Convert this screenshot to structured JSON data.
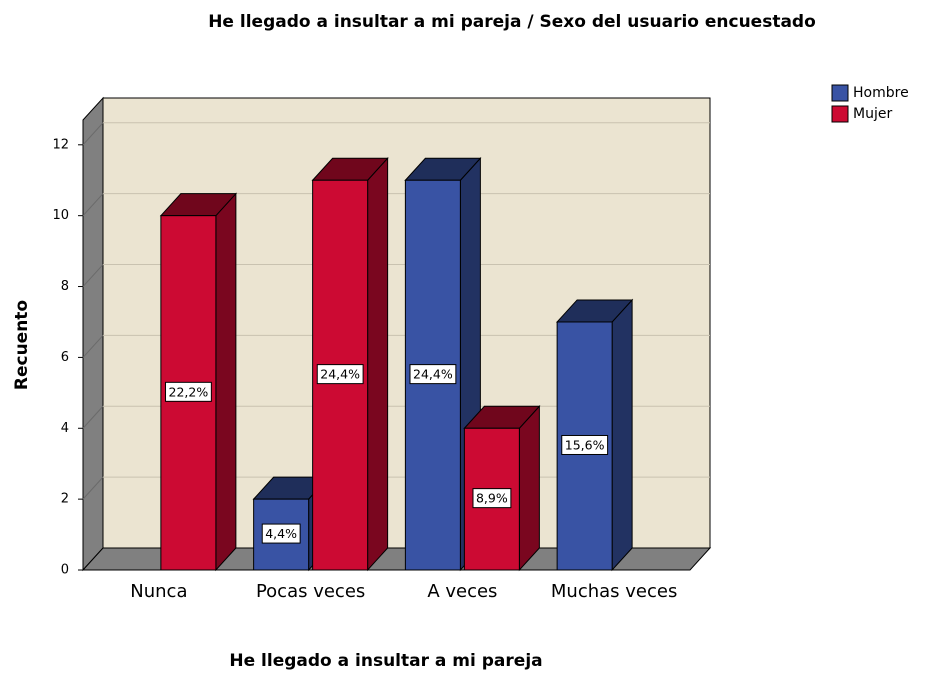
{
  "chart_data": {
    "type": "bar3d",
    "title": "He llegado a insultar a mi pareja / Sexo del usuario encuestado",
    "x_label": "He llegado a insultar a mi pareja",
    "y_label": "Recuento",
    "categories": [
      "Nunca",
      "Pocas veces",
      "A veces",
      "Muchas veces"
    ],
    "series": [
      {
        "name": "Hombre",
        "color": "#3953a4",
        "values": [
          null,
          2,
          11,
          7
        ],
        "percents": [
          null,
          4.4,
          24.4,
          15.6
        ],
        "percent_labels": [
          null,
          "4,4%",
          "24,4%",
          "15,6%"
        ]
      },
      {
        "name": "Mujer",
        "color": "#cc0a33",
        "values": [
          10,
          11,
          4,
          null
        ],
        "percents": [
          22.2,
          24.4,
          8.9,
          null
        ],
        "percent_labels": [
          "22,2%",
          "24,4%",
          "8,9%",
          null
        ]
      }
    ],
    "ylim": [
      0,
      12.7
    ],
    "yticks": [
      0,
      2,
      4,
      6,
      8,
      10,
      12
    ],
    "grid": true,
    "legend": "top-right"
  }
}
